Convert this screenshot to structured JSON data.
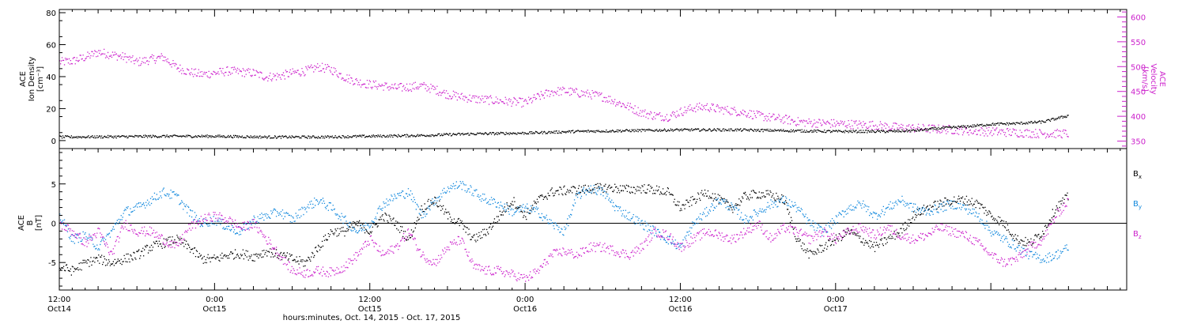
{
  "chart_data": [
    {
      "type": "scatter",
      "panel": "plasma",
      "y_left_label": [
        "ACE",
        "Ion Density",
        "[cm⁻³]"
      ],
      "y_right_label": [
        "ACE",
        "Velocity",
        "[km/s]"
      ],
      "y_left_ticks": [
        "0",
        "20",
        "40",
        "60",
        "80"
      ],
      "y_right_ticks": [
        "350",
        "400",
        "450",
        "500",
        "550",
        "600"
      ],
      "ylim_left": [
        -5,
        82
      ],
      "ylim_right": [
        335,
        615
      ],
      "series": [
        {
          "color": "#000000",
          "axis": "left",
          "hours": [
            0,
            4,
            8,
            12,
            16,
            20,
            24,
            28,
            32,
            36,
            40,
            44,
            48,
            52,
            56,
            60,
            64,
            66,
            68,
            70,
            72,
            74,
            76,
            77,
            78
          ],
          "values": [
            2.5,
            2.7,
            3.0,
            3.0,
            2.5,
            2.5,
            3.0,
            3.5,
            4.5,
            5.0,
            6.0,
            6.5,
            7.0,
            7.0,
            6.5,
            6.0,
            6.0,
            6.5,
            8.0,
            9.0,
            10.5,
            11,
            12,
            14,
            16
          ]
        },
        {
          "color": "#cc22cc",
          "axis": "right",
          "hours": [
            0,
            1,
            2,
            3,
            4,
            5,
            6,
            7,
            8,
            9,
            10,
            11,
            12,
            13,
            14,
            15,
            16,
            17,
            18,
            19,
            20,
            21,
            22,
            23,
            24,
            25,
            26,
            27,
            28,
            29,
            30,
            31,
            32,
            33,
            34,
            35,
            36,
            37,
            38,
            39,
            40,
            41,
            42,
            43,
            44,
            45,
            46,
            47,
            48,
            49,
            50,
            51,
            52,
            53,
            54,
            55,
            56,
            57,
            58,
            59,
            60,
            61,
            62,
            63,
            64,
            65,
            66,
            67,
            68,
            69,
            70,
            71,
            72,
            73,
            74,
            75,
            76,
            77,
            78
          ],
          "values": [
            510,
            512,
            520,
            530,
            525,
            520,
            510,
            515,
            520,
            500,
            490,
            485,
            488,
            492,
            490,
            488,
            480,
            482,
            488,
            492,
            500,
            495,
            480,
            470,
            465,
            462,
            458,
            460,
            462,
            455,
            445,
            440,
            436,
            434,
            432,
            430,
            428,
            440,
            450,
            452,
            448,
            445,
            440,
            430,
            420,
            408,
            402,
            400,
            410,
            418,
            420,
            415,
            412,
            408,
            402,
            398,
            395,
            390,
            388,
            387,
            386,
            385,
            384,
            383,
            380,
            378,
            377,
            376,
            375,
            374,
            372,
            371,
            370,
            369,
            368,
            367,
            366,
            366,
            366
          ]
        }
      ]
    },
    {
      "type": "scatter",
      "panel": "magnetic field",
      "y_left_label": [
        "ACE",
        "B",
        "[nT]"
      ],
      "y_left_ticks": [
        "-5",
        "0",
        "5"
      ],
      "ylim": [
        -8.5,
        9.5
      ],
      "legend": [
        {
          "text": "B",
          "sub": "x",
          "color": "#000000"
        },
        {
          "text": "B",
          "sub": "y",
          "color": "#1188dd"
        },
        {
          "text": "B",
          "sub": "z",
          "color": "#cc22cc"
        }
      ],
      "series": [
        {
          "name": "Bx",
          "color": "#000000",
          "hours": [
            0,
            1,
            2,
            3,
            4,
            5,
            6,
            7,
            8,
            9,
            10,
            11,
            12,
            13,
            14,
            15,
            16,
            17,
            18,
            19,
            20,
            21,
            22,
            23,
            24,
            25,
            26,
            27,
            28,
            29,
            30,
            31,
            32,
            33,
            34,
            35,
            36,
            37,
            38,
            39,
            40,
            41,
            42,
            43,
            44,
            45,
            46,
            47,
            48,
            49,
            50,
            51,
            52,
            53,
            54,
            55,
            56,
            57,
            58,
            59,
            60,
            61,
            62,
            63,
            64,
            65,
            66,
            67,
            68,
            69,
            70,
            71,
            72,
            73,
            74,
            75,
            76,
            77,
            78
          ],
          "values": [
            -5.5,
            -6.0,
            -5.0,
            -4.5,
            -5.0,
            -4.5,
            -4.0,
            -3.0,
            -2.5,
            -2.0,
            -3.0,
            -4.5,
            -4.5,
            -4.0,
            -3.8,
            -4.2,
            -3.5,
            -4.0,
            -4.5,
            -5.0,
            -3.0,
            -1.0,
            -1.0,
            0.0,
            -1.0,
            1.0,
            0.0,
            -2.0,
            2.0,
            3.0,
            1.0,
            0.0,
            -2.0,
            -1.0,
            1.0,
            3.0,
            1.0,
            3.0,
            4.0,
            4.2,
            4.3,
            4.4,
            4.6,
            4.5,
            4.3,
            4.5,
            4.3,
            4.0,
            2.0,
            3.0,
            4.0,
            3.0,
            2.0,
            3.5,
            3.8,
            3.6,
            3.0,
            -2.0,
            -4.0,
            -3.0,
            -2.0,
            -1.0,
            -2.0,
            -3.0,
            -2.0,
            -1.0,
            1.0,
            2.0,
            2.5,
            3.0,
            3.0,
            2.5,
            1.0,
            0.0,
            -2.0,
            -2.5,
            -1.0,
            2.0,
            3.5
          ]
        },
        {
          "name": "By",
          "color": "#1188dd",
          "hours": [
            0,
            1,
            2,
            3,
            4,
            5,
            6,
            7,
            8,
            9,
            10,
            11,
            12,
            13,
            14,
            15,
            16,
            17,
            18,
            19,
            20,
            21,
            22,
            23,
            24,
            25,
            26,
            27,
            28,
            29,
            30,
            31,
            32,
            33,
            34,
            35,
            36,
            37,
            38,
            39,
            40,
            41,
            42,
            43,
            44,
            45,
            46,
            47,
            48,
            49,
            50,
            51,
            52,
            53,
            54,
            55,
            56,
            57,
            58,
            59,
            60,
            61,
            62,
            63,
            64,
            65,
            66,
            67,
            68,
            69,
            70,
            71,
            72,
            73,
            74,
            75,
            76,
            77,
            78
          ],
          "values": [
            1.0,
            -2.0,
            -1.5,
            -3.0,
            -1.0,
            1.5,
            2.0,
            3.0,
            4.0,
            3.5,
            1.5,
            0.0,
            0.5,
            -0.5,
            -1.0,
            0.5,
            1.0,
            1.5,
            0.5,
            2.0,
            3.0,
            2.0,
            0.5,
            -1.0,
            0.0,
            2.5,
            3.5,
            4.0,
            1.0,
            3.0,
            4.5,
            5.0,
            4.0,
            3.0,
            2.5,
            1.5,
            2.0,
            1.5,
            0.0,
            -1.0,
            3.5,
            4.5,
            4.0,
            2.0,
            1.0,
            0.0,
            -1.0,
            -2.0,
            -3.0,
            0.0,
            1.5,
            3.0,
            2.0,
            0.5,
            1.5,
            2.5,
            3.0,
            2.0,
            0.0,
            -1.0,
            0.5,
            2.0,
            2.5,
            1.0,
            2.0,
            3.0,
            2.0,
            1.5,
            2.0,
            2.5,
            2.0,
            1.0,
            -1.0,
            -2.0,
            -3.0,
            -4.0,
            -4.5,
            -4.0,
            -3.0
          ]
        },
        {
          "name": "Bz",
          "color": "#cc22cc",
          "hours": [
            0,
            1,
            2,
            3,
            4,
            5,
            6,
            7,
            8,
            9,
            10,
            11,
            12,
            13,
            14,
            15,
            16,
            17,
            18,
            19,
            20,
            21,
            22,
            23,
            24,
            25,
            26,
            27,
            28,
            29,
            30,
            31,
            32,
            33,
            34,
            35,
            36,
            37,
            38,
            39,
            40,
            41,
            42,
            43,
            44,
            45,
            46,
            47,
            48,
            49,
            50,
            51,
            52,
            53,
            54,
            55,
            56,
            57,
            58,
            59,
            60,
            61,
            62,
            63,
            64,
            65,
            66,
            67,
            68,
            69,
            70,
            71,
            72,
            73,
            74,
            75,
            76,
            77,
            78
          ],
          "values": [
            0.0,
            -1.0,
            -2.5,
            -1.0,
            -4.0,
            0.0,
            -1.0,
            -1.0,
            -2.0,
            -3.0,
            -0.5,
            0.5,
            1.0,
            0.5,
            -0.5,
            0.0,
            -2.0,
            -4.0,
            -6.0,
            -6.3,
            -6.0,
            -6.2,
            -5.5,
            -4.0,
            -2.0,
            -4.0,
            -3.0,
            -1.0,
            -4.0,
            -5.0,
            -3.0,
            -2.0,
            -5.5,
            -6.0,
            -6.0,
            -6.5,
            -7.0,
            -6.0,
            -4.0,
            -3.5,
            -4.0,
            -3.0,
            -3.0,
            -3.5,
            -4.0,
            -3.0,
            -1.0,
            -1.5,
            -3.0,
            -2.0,
            -1.0,
            -1.5,
            -2.0,
            -1.0,
            0.0,
            -2.0,
            -0.5,
            -1.0,
            -2.0,
            -1.0,
            -2.0,
            -1.0,
            -0.5,
            -1.5,
            -0.5,
            -1.5,
            -2.0,
            -1.5,
            -0.5,
            -1.0,
            -1.5,
            -2.5,
            -4.0,
            -5.0,
            -4.5,
            -3.0,
            -2.0,
            1.0,
            3.0
          ]
        }
      ]
    }
  ],
  "x_axis": {
    "xlim_hours": [
      0,
      82.5
    ],
    "major_ticks": [
      {
        "hour": 0,
        "time": "12:00",
        "day": "Oct14"
      },
      {
        "hour": 12,
        "time": "0:00",
        "day": "Oct15"
      },
      {
        "hour": 24,
        "time": "12:00",
        "day": "Oct15"
      },
      {
        "hour": 36,
        "time": "0:00",
        "day": "Oct16"
      },
      {
        "hour": 48,
        "time": "12:00",
        "day": "Oct16"
      },
      {
        "hour": 60,
        "time": "0:00",
        "day": "Oct17"
      }
    ],
    "xlabel": "hours:minutes, Oct. 14, 2015 - Oct. 17, 2015"
  }
}
